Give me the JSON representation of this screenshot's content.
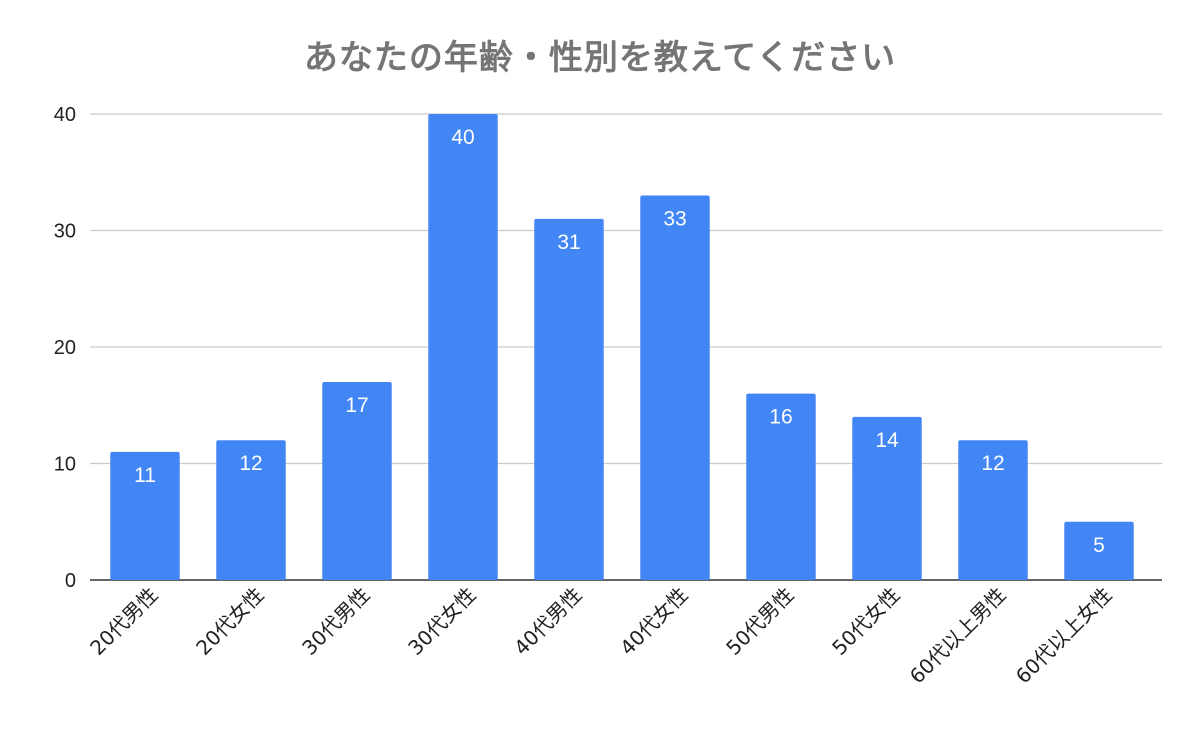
{
  "chart_data": {
    "type": "bar",
    "title": "あなたの年齢・性別を教えてください",
    "xlabel": "",
    "ylabel": "",
    "categories": [
      "20代男性",
      "20代女性",
      "30代男性",
      "30代女性",
      "40代男性",
      "40代女性",
      "50代男性",
      "50代女性",
      "60代以上男性",
      "60代以上女性"
    ],
    "values": [
      11,
      12,
      17,
      40,
      31,
      33,
      16,
      14,
      12,
      5
    ],
    "ylim": [
      0,
      40
    ],
    "yticks": [
      0,
      10,
      20,
      30,
      40
    ],
    "grid": true,
    "legend": "none",
    "bar_color": "#4285f4",
    "grid_color": "#cccccc",
    "axis_color": "#333333"
  }
}
